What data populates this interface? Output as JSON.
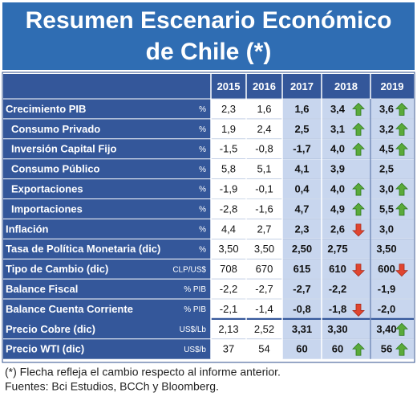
{
  "title": {
    "line1": "Resumen Escenario Económico",
    "line2": "de Chile (*)"
  },
  "table": {
    "header": [
      "2015",
      "2016",
      "2017",
      "2018",
      "2019"
    ],
    "rows": [
      {
        "label": "Crecimiento PIB",
        "unit": "%",
        "values": [
          "2,3",
          "1,6",
          "1,6",
          "3,4",
          "3,6"
        ]
      },
      {
        "label": "Consumo Privado",
        "unit": "%",
        "values": [
          "1,9",
          "2,4",
          "2,5",
          "3,1",
          "3,2"
        ]
      },
      {
        "label": "Inversión Capital Fijo",
        "unit": "%",
        "values": [
          "-1,5",
          "-0,8",
          "-1,7",
          "4,0",
          "4,5"
        ]
      },
      {
        "label": "Consumo Público",
        "unit": "%",
        "values": [
          "5,8",
          "5,1",
          "4,1",
          "3,9",
          "2,5"
        ]
      },
      {
        "label": "Exportaciones",
        "unit": "%",
        "values": [
          "-1,9",
          "-0,1",
          "0,4",
          "4,0",
          "3,0"
        ]
      },
      {
        "label": "Importaciones",
        "unit": "%",
        "values": [
          "-2,8",
          "-1,6",
          "4,7",
          "4,9",
          "5,5"
        ]
      },
      {
        "label": "Inflación",
        "unit": "%",
        "values": [
          "4,4",
          "2,7",
          "2,3",
          "2,6",
          "3,0"
        ]
      },
      {
        "label": "Tasa de Política Monetaria (dic)",
        "unit": "%",
        "values": [
          "3,50",
          "3,50",
          "2,50",
          "2,75",
          "3,50"
        ]
      },
      {
        "label": "Tipo de Cambio (dic)",
        "unit": "CLP/US$",
        "values": [
          "708",
          "670",
          "615",
          "610",
          "600"
        ]
      },
      {
        "label": "Balance Fiscal",
        "unit": "% PIB",
        "values": [
          "-2,2",
          "-2,7",
          "-2,7",
          "-2,2",
          "-1,9"
        ]
      },
      {
        "label": "Balance Cuenta Corriente",
        "unit": "% PIB",
        "values": [
          "-2,1",
          "-1,4",
          "-0,8",
          "-1,8",
          "-2,0"
        ]
      },
      {
        "label": "Precio Cobre (dic)",
        "unit": "US$/Lb",
        "values": [
          "2,13",
          "2,52",
          "3,31",
          "3,30",
          "3,40"
        ]
      },
      {
        "label": "Precio WTI (dic)",
        "unit": "US$/b",
        "values": [
          "37",
          "54",
          "60",
          "60",
          "56"
        ]
      }
    ]
  },
  "footer": {
    "note": "(*) Flecha refleja el cambio respecto al informe anterior.",
    "sources": "Fuentes: Bci Estudios, BCCh y Bloomberg."
  }
}
